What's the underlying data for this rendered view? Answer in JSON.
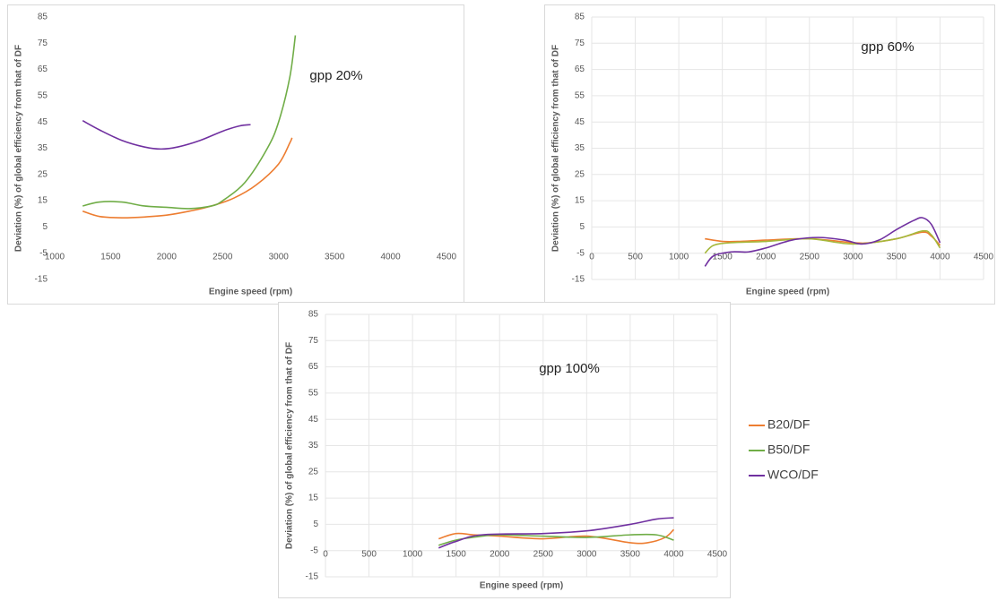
{
  "chart_data": [
    {
      "type": "line",
      "annotation": "gpp 20%",
      "x_label": "Engine speed (rpm)",
      "y_label": "Deviation (%) of global efficiency from that of DF",
      "xlim": [
        1000,
        4500
      ],
      "xticks": [
        1000,
        1500,
        2000,
        2500,
        3000,
        3500,
        4000,
        4500
      ],
      "ylim": [
        -15,
        85
      ],
      "yticks": [
        -15,
        -5,
        5,
        15,
        25,
        35,
        45,
        55,
        65,
        75,
        85
      ],
      "grid": false,
      "series": [
        {
          "color": "#ed7d31",
          "x": [
            1250,
            1400,
            1600,
            1800,
            2000,
            2200,
            2400,
            2600,
            2800,
            3000,
            3100,
            3120
          ],
          "values": [
            11,
            9,
            8.5,
            8.8,
            9.5,
            11,
            13,
            16,
            21,
            29,
            37,
            39
          ]
        },
        {
          "color": "#70ad47",
          "x": [
            1250,
            1400,
            1600,
            1800,
            2000,
            2200,
            2400,
            2500,
            2700,
            2900,
            3000,
            3100,
            3150
          ],
          "values": [
            13,
            14.5,
            14.5,
            13,
            12.5,
            12,
            13,
            15,
            22,
            35,
            45,
            62,
            78
          ]
        },
        {
          "color": "#7030a0",
          "x": [
            1250,
            1400,
            1600,
            1800,
            1950,
            2100,
            2300,
            2500,
            2650,
            2750
          ],
          "values": [
            45.5,
            42,
            38,
            35.5,
            34.7,
            35.5,
            38,
            41.5,
            43.5,
            44
          ]
        }
      ]
    },
    {
      "type": "line",
      "annotation": "gpp 60%",
      "x_label": "Engine speed (rpm)",
      "y_label": "Deviation (%) of global efficiency from that of DF",
      "xlim": [
        0,
        4500
      ],
      "xticks": [
        0,
        500,
        1000,
        1500,
        2000,
        2500,
        3000,
        3500,
        4000,
        4500
      ],
      "ylim": [
        -15,
        85
      ],
      "yticks": [
        -15,
        -5,
        5,
        15,
        25,
        35,
        45,
        55,
        65,
        75,
        85
      ],
      "grid": true,
      "series": [
        {
          "color": "#ed7d31",
          "x": [
            1300,
            1500,
            1700,
            2000,
            2500,
            3000,
            3200,
            3500,
            3800,
            3900,
            4000
          ],
          "values": [
            0.5,
            -0.5,
            -0.5,
            0,
            0.5,
            -1,
            -1,
            0.5,
            3,
            1.5,
            -2
          ]
        },
        {
          "color": "#a5b83a",
          "x": [
            1300,
            1400,
            1600,
            2000,
            2500,
            3000,
            3500,
            3800,
            3900,
            4000
          ],
          "values": [
            -5,
            -2,
            -1,
            -0.5,
            0.5,
            -1.5,
            0.5,
            3.5,
            2,
            -3
          ]
        },
        {
          "color": "#7030a0",
          "x": [
            1300,
            1400,
            1600,
            1800,
            2000,
            2300,
            2600,
            2900,
            3100,
            3300,
            3500,
            3700,
            3800,
            3900,
            4000
          ],
          "values": [
            -10,
            -6,
            -4.5,
            -4.5,
            -3,
            0,
            1,
            0,
            -1.5,
            0,
            4,
            7.5,
            8.5,
            6,
            -1
          ]
        }
      ]
    },
    {
      "type": "line",
      "annotation": "gpp 100%",
      "x_label": "Engine speed (rpm)",
      "y_label": "Deviation (%) of global efficiency from that of DF",
      "xlim": [
        0,
        4500
      ],
      "xticks": [
        0,
        500,
        1000,
        1500,
        2000,
        2500,
        3000,
        3500,
        4000,
        4500
      ],
      "ylim": [
        -15,
        85
      ],
      "yticks": [
        -15,
        -5,
        5,
        15,
        25,
        35,
        45,
        55,
        65,
        75,
        85
      ],
      "grid": true,
      "legend": "right",
      "series": [
        {
          "name": "B20/DF",
          "color": "#ed7d31",
          "x": [
            1300,
            1500,
            1700,
            2000,
            2500,
            3000,
            3500,
            3700,
            3900,
            4000
          ],
          "values": [
            -0.5,
            1.5,
            1,
            0.5,
            -0.5,
            0.5,
            -2,
            -2,
            0,
            3
          ]
        },
        {
          "name": "B50/DF",
          "color": "#70ad47",
          "x": [
            1300,
            1500,
            1800,
            2000,
            2500,
            3000,
            3500,
            3800,
            4000
          ],
          "values": [
            -3,
            -1,
            0.5,
            1,
            0.5,
            0,
            1,
            1,
            -1
          ]
        },
        {
          "name": "WCO/DF",
          "color": "#7030a0",
          "x": [
            1300,
            1500,
            1800,
            2500,
            3000,
            3500,
            3800,
            4000
          ],
          "values": [
            -4,
            -1.5,
            1,
            1.5,
            2.5,
            5,
            7,
            7.5
          ]
        }
      ]
    }
  ]
}
